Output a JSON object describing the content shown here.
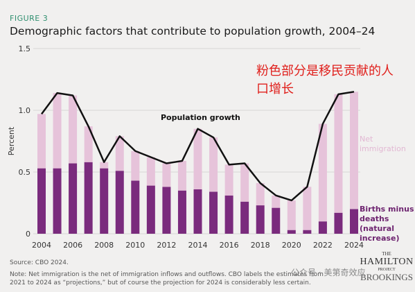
{
  "chart_data": {
    "type": "stacked_bar_line",
    "figure_label": "FIGURE 3",
    "title": "Demographic factors that contribute to population growth, 2004–24",
    "annotation": "粉色部分是移民贡献的人口增长",
    "y_label": "Percent",
    "categories": [
      2004,
      null,
      2006,
      null,
      2008,
      null,
      2010,
      null,
      2012,
      null,
      2014,
      null,
      2016,
      null,
      2018,
      null,
      2020,
      null,
      2022,
      null,
      2024
    ],
    "series": [
      {
        "name": "Births minus deaths (natural increase)",
        "color": "#7a2b7d",
        "values": [
          0.53,
          0.53,
          0.57,
          0.58,
          0.53,
          0.51,
          0.43,
          0.39,
          0.38,
          0.35,
          0.36,
          0.34,
          0.31,
          0.26,
          0.23,
          0.21,
          0.03,
          0.03,
          0.1,
          0.17,
          0.2
        ]
      },
      {
        "name": "Net immigration",
        "color": "#e6c3da",
        "values": [
          0.44,
          0.61,
          0.55,
          0.29,
          0.05,
          0.28,
          0.24,
          0.23,
          0.19,
          0.24,
          0.49,
          0.44,
          0.25,
          0.31,
          0.18,
          0.1,
          0.24,
          0.35,
          0.79,
          0.96,
          0.95
        ]
      },
      {
        "name": "Population growth",
        "type": "line",
        "color": "#111111",
        "values": [
          0.97,
          1.14,
          1.12,
          0.87,
          0.58,
          0.79,
          0.67,
          0.62,
          0.57,
          0.59,
          0.85,
          0.78,
          0.56,
          0.57,
          0.41,
          0.31,
          0.27,
          0.38,
          0.89,
          1.13,
          1.15
        ]
      }
    ],
    "ylim": [
      0,
      1.5
    ],
    "yticks": [
      0,
      0.5,
      {
        "value": 1.0,
        "label": "1.0"
      },
      1.5
    ],
    "grid": true,
    "source": "Source: CBO 2024.",
    "note": "Note: Net immigration is the net of immigration inflows and outflows. CBO labels the estimates from 2021 to 2024 as “projections,” but of course the projection for 2024 is considerably less certain.",
    "logo": [
      "THE",
      "HAMILTON",
      "PROJECT",
      "BROOKINGS"
    ],
    "watermark": "公众号 · 美第奇效应"
  }
}
